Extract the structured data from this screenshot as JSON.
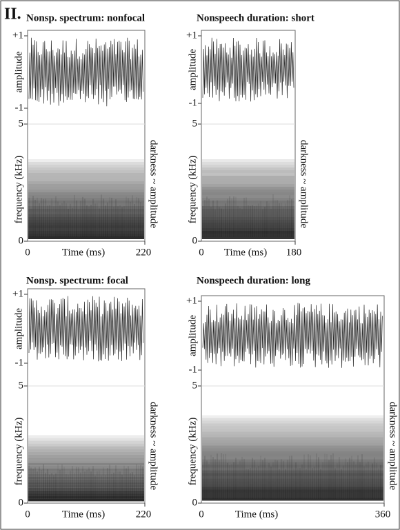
{
  "figure_label": "II.",
  "panels": [
    {
      "title": "Nonsp. spectrum: nonfocal",
      "amplitude_ticks": [
        "+1",
        "-1"
      ],
      "frequency_ticks": [
        "5",
        "0"
      ],
      "time_ticks": [
        "0",
        "220"
      ],
      "amplitude_label": "amplitude",
      "frequency_label": "frequency (kHz)",
      "time_label": "Time (ms)",
      "side_label": "darkness ~ amplitude"
    },
    {
      "title": "Nonspeech duration: short",
      "amplitude_ticks": [
        "+1",
        "-1"
      ],
      "frequency_ticks": [
        "5",
        "0"
      ],
      "time_ticks": [
        "0",
        "180"
      ],
      "amplitude_label": "amplitude",
      "frequency_label": "frequency (kHz)",
      "time_label": "Time (ms)",
      "side_label": "darkness ~ amplitude"
    },
    {
      "title": "Nonsp. spectrum: focal",
      "amplitude_ticks": [
        "+1",
        "-1"
      ],
      "frequency_ticks": [
        "5",
        "0"
      ],
      "time_ticks": [
        "0",
        "220"
      ],
      "amplitude_label": "amplitude",
      "frequency_label": "frequency (kHz)",
      "time_label": "Time (ms)",
      "side_label": "darkness ~ amplitude"
    },
    {
      "title": "Nonspeech duration: long",
      "amplitude_ticks": [
        "+1",
        "-1"
      ],
      "frequency_ticks": [
        "5",
        "0"
      ],
      "time_ticks": [
        "0",
        "360"
      ],
      "amplitude_label": "amplitude",
      "frequency_label": "frequency (kHz)",
      "time_label": "Time (ms)",
      "side_label": "darkness ~ amplitude"
    }
  ]
}
